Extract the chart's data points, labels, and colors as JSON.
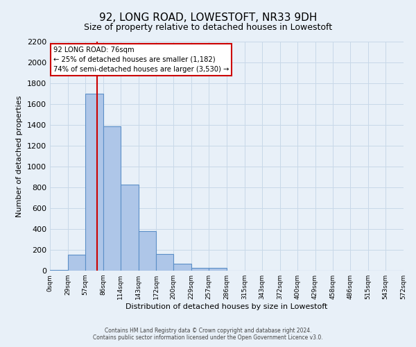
{
  "title": "92, LONG ROAD, LOWESTOFT, NR33 9DH",
  "subtitle": "Size of property relative to detached houses in Lowestoft",
  "xlabel": "Distribution of detached houses by size in Lowestoft",
  "ylabel": "Number of detached properties",
  "bin_edges": [
    0,
    29,
    57,
    86,
    114,
    143,
    172,
    200,
    229,
    257,
    286,
    315,
    343,
    372,
    400,
    429,
    458,
    486,
    515,
    543,
    572
  ],
  "bar_heights": [
    10,
    155,
    1700,
    1390,
    830,
    380,
    160,
    65,
    30,
    30,
    0,
    0,
    0,
    0,
    0,
    0,
    0,
    0,
    0,
    0
  ],
  "bar_color": "#aec6e8",
  "bar_edge_color": "#5b8fc7",
  "bar_edge_width": 0.8,
  "property_line_x": 76,
  "property_line_color": "#cc0000",
  "ylim": [
    0,
    2200
  ],
  "yticks": [
    0,
    200,
    400,
    600,
    800,
    1000,
    1200,
    1400,
    1600,
    1800,
    2000,
    2200
  ],
  "annotation_title": "92 LONG ROAD: 76sqm",
  "annotation_line1": "← 25% of detached houses are smaller (1,182)",
  "annotation_line2": "74% of semi-detached houses are larger (3,530) →",
  "annotation_box_color": "#ffffff",
  "annotation_box_edge": "#cc0000",
  "grid_color": "#c8d8e8",
  "bg_color": "#e8f0f8",
  "footer1": "Contains HM Land Registry data © Crown copyright and database right 2024.",
  "footer2": "Contains public sector information licensed under the Open Government Licence v3.0."
}
